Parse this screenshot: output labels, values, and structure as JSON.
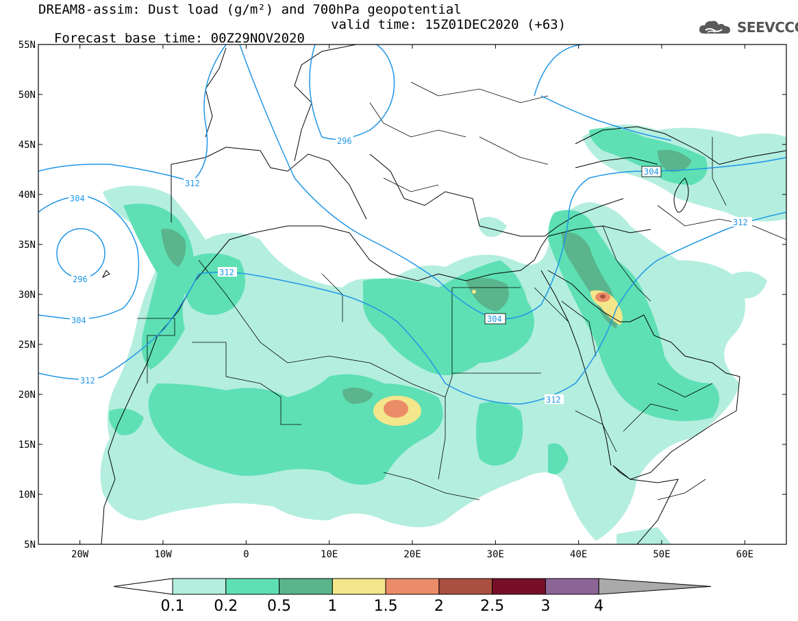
{
  "header": {
    "title_line1": "DREAM8-assim: Dust load (g/m²) and 700hPa geopotential",
    "base_time": "Forecast base time: 00Z29NOV2020",
    "valid_time": "valid time: 15Z01DEC2020 (+63)",
    "logo_text": "SEEVCCC",
    "logo_icon": "cloud-icon"
  },
  "map": {
    "lat_labels": [
      "55N",
      "50N",
      "45N",
      "40N",
      "35N",
      "30N",
      "25N",
      "20N",
      "15N",
      "10N",
      "5N"
    ],
    "lon_labels": [
      "20W",
      "10W",
      "0",
      "10E",
      "20E",
      "30E",
      "40E",
      "50E",
      "60E"
    ],
    "contour_labels": {
      "l296_north": "296",
      "l312_iberia": "312",
      "l304_atl": "304",
      "l296_atl": "296",
      "l312_morocco": "312",
      "l304_atl_s": "304",
      "l312_sw": "312",
      "l304_egypt": "304",
      "l312_sudan": "312",
      "l304_caspian": "304",
      "l312_east": "312"
    }
  },
  "colorbar": {
    "labels": [
      "0.1",
      "0.2",
      "0.5",
      "1",
      "1.5",
      "2",
      "2.5",
      "3",
      "4"
    ],
    "colors": [
      "#b4eedf",
      "#5ee0b4",
      "#5ab48c",
      "#f4e68a",
      "#eb8c68",
      "#aa5040",
      "#780f28",
      "#8c6496",
      "#aaaaaa"
    ]
  }
}
